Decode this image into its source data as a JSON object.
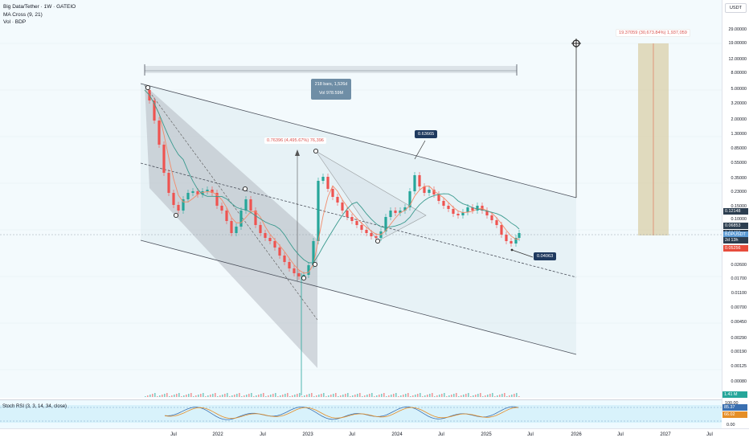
{
  "legend": {
    "symbol_line": "Big Data/Tether · 1W · GATEIO",
    "indicator_ma": "MA Cross (9, 21)",
    "indicator_vol": "Vol · BDP"
  },
  "currency_button": "USDT",
  "price_ticks": [
    "29.00000",
    "19.00000",
    "12.00000",
    "8.00000",
    "5.00000",
    "3.20000",
    "2.00000",
    "1.30000",
    "0.85000",
    "0.55000",
    "0.35000",
    "0.23000",
    "0.15000",
    "0.10000",
    "0.02600",
    "0.01700",
    "0.01100",
    "0.00700",
    "0.00450",
    "0.00290",
    "0.00190",
    "0.00125",
    "0.00080"
  ],
  "price_labels": [
    {
      "text": "0.12148",
      "color": "#2c3e50"
    },
    {
      "text": "0.06853",
      "color": "#2c3e50"
    },
    {
      "text": "0.06406",
      "color": "#2c3e50"
    },
    {
      "text": "BDPUSDT",
      "color": "#5b9bd5"
    },
    {
      "text": "2d 13h",
      "color": "#2c3e50"
    },
    {
      "text": "0.05256",
      "color": "#e74c3c"
    }
  ],
  "volume_label": "1.41 M",
  "rsi": {
    "label": "Stoch RSI (3, 3, 14, 34, close)",
    "ticks": [
      "100.00",
      "0.00"
    ],
    "values": [
      "85.37",
      "66.02"
    ]
  },
  "time_labels": [
    "Jul",
    "2022",
    "Jul",
    "2023",
    "Jul",
    "2024",
    "Jul",
    "2025",
    "Jul",
    "2026",
    "Jul",
    "2027",
    "Jul"
  ],
  "callouts": {
    "top_high": "0.63665",
    "recent_low": "0.04063"
  },
  "measure": {
    "bars": "218 bars, 1,526d",
    "vol": "Vol 978.59M"
  },
  "long_measure": "0.76396 (4,495.67%) 76,396",
  "projection": "19.37059 (30,673.84%) 1,937,059",
  "colors": {
    "up": "#26a69a",
    "down": "#ef5350",
    "ma_fast": "#f28b6b",
    "ma_slow": "#3a9a8e",
    "channel": "#4a4f5a",
    "drawing_fill": "#c8ced6",
    "projection_fill": "#d9cfa8",
    "price_badge": "#e74c3c",
    "callout_bg": "#1f3a5f"
  }
}
